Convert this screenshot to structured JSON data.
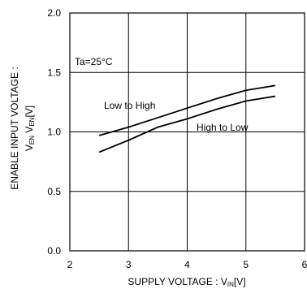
{
  "chart_data": {
    "type": "line",
    "xlim": [
      2,
      6
    ],
    "ylim": [
      0.0,
      2.0
    ],
    "grid": true,
    "x_ticks": [
      "2",
      "3",
      "4",
      "5",
      "6"
    ],
    "y_ticks": [
      "0.0",
      "0.5",
      "1.0",
      "1.5",
      "2.0"
    ],
    "xlabel": {
      "main": "SUPPLY VOLTAGE : V",
      "sub": "IN",
      "unit": "[V]"
    },
    "ylabel": {
      "line1": "ENABLE INPUT VOLTAGE :",
      "line2_a": "V",
      "line2_a_sub": "EN",
      "line2_b": " V",
      "line2_b_sub": "EN",
      "unit": "[V]"
    },
    "annotation": "Ta=25°C",
    "series": [
      {
        "name": "Low to High",
        "color": "#000000",
        "points": [
          [
            2.5,
            0.97
          ],
          [
            3.0,
            1.04
          ],
          [
            3.5,
            1.12
          ],
          [
            4.0,
            1.2
          ],
          [
            4.5,
            1.28
          ],
          [
            5.0,
            1.35
          ],
          [
            5.5,
            1.39
          ]
        ]
      },
      {
        "name": "High to Low",
        "color": "#000000",
        "points": [
          [
            2.5,
            0.83
          ],
          [
            3.0,
            0.93
          ],
          [
            3.5,
            1.04
          ],
          [
            4.0,
            1.11
          ],
          [
            4.5,
            1.19
          ],
          [
            5.0,
            1.26
          ],
          [
            5.5,
            1.3
          ]
        ]
      }
    ]
  }
}
